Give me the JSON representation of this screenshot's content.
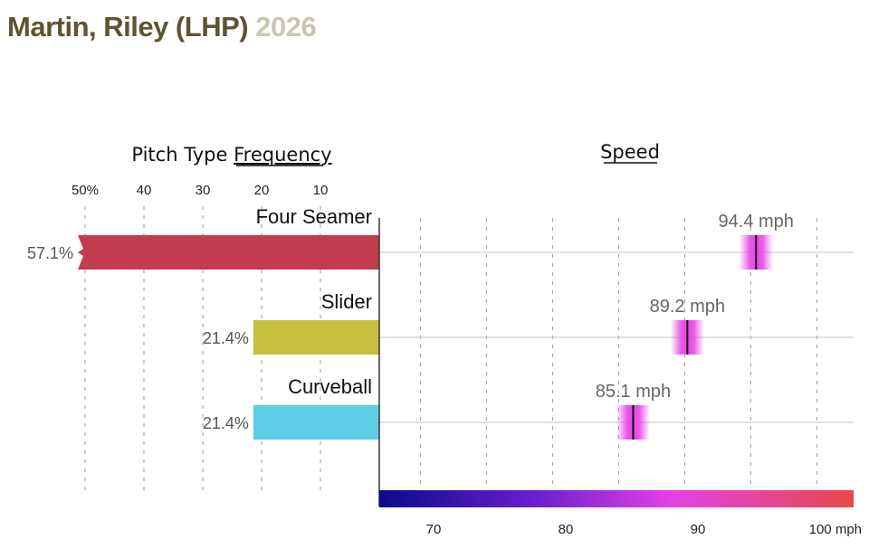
{
  "header": {
    "name": "Martin, Riley (LHP)",
    "year": "2026"
  },
  "colors": {
    "title_name": "#5e5432",
    "title_year": "#c9c6b4",
    "four_seamer": "#c33c4d",
    "slider": "#c4bf3d",
    "curveball": "#5dcde6",
    "speed_marker": "#e641e6",
    "gradient": [
      "#0b0a8c",
      "#6a1fd0",
      "#e641e6",
      "#e84848"
    ]
  },
  "chart_data": {
    "type": "bar",
    "frequency": {
      "title_prefix": "Pitch Type ",
      "title_emph": "Frequency",
      "ticks": [
        {
          "value": 50,
          "label": "50%"
        },
        {
          "value": 40,
          "label": "40"
        },
        {
          "value": 30,
          "label": "30"
        },
        {
          "value": 20,
          "label": "20"
        },
        {
          "value": 10,
          "label": "10"
        }
      ]
    },
    "speed": {
      "title": "Speed",
      "xlim": [
        65,
        101
      ],
      "ticks": [
        {
          "value": 70,
          "label": "70"
        },
        {
          "value": 80,
          "label": "80"
        },
        {
          "value": 90,
          "label": "90"
        },
        {
          "value": 100,
          "label": "100 mph"
        }
      ],
      "gridlines": [
        69,
        74,
        79,
        84,
        89,
        94,
        99
      ]
    },
    "pitches": [
      {
        "name": "Four Seamer",
        "frequency": 57.1,
        "frequency_label": "57.1%",
        "speed": 94.4,
        "speed_label": "94.4 mph",
        "color": "#c33c4d",
        "truncated": true
      },
      {
        "name": "Slider",
        "frequency": 21.4,
        "frequency_label": "21.4%",
        "speed": 89.2,
        "speed_label": "89.2 mph",
        "color": "#c4bf3d",
        "truncated": false
      },
      {
        "name": "Curveball",
        "frequency": 21.4,
        "frequency_label": "21.4%",
        "speed": 85.1,
        "speed_label": "85.1 mph",
        "color": "#5dcde6",
        "truncated": false
      }
    ]
  }
}
